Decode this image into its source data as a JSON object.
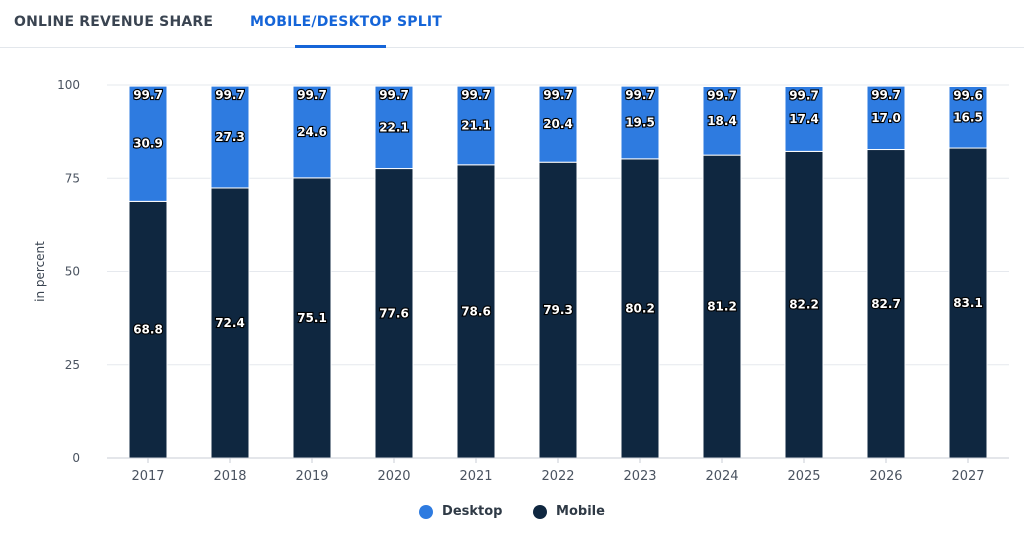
{
  "tabs": [
    {
      "label": "ONLINE REVENUE SHARE"
    },
    {
      "label": "MOBILE/DESKTOP SPLIT"
    }
  ],
  "colors": {
    "desktop": "#2e7be0",
    "mobile": "#0f2740",
    "active_tab": "#1565d8",
    "grid": "#e6e9ee"
  },
  "chart_data": {
    "type": "bar",
    "stacked": true,
    "ylabel": "in percent",
    "ylim": [
      0,
      100
    ],
    "yticks": [
      "0",
      "25",
      "50",
      "75",
      "100"
    ],
    "categories": [
      "2017",
      "2018",
      "2019",
      "2020",
      "2021",
      "2022",
      "2023",
      "2024",
      "2025",
      "2026",
      "2027"
    ],
    "series": [
      {
        "name": "Mobile",
        "values": [
          68.8,
          72.4,
          75.1,
          77.6,
          78.6,
          79.3,
          80.2,
          81.2,
          82.2,
          82.7,
          83.1
        ]
      },
      {
        "name": "Desktop",
        "values": [
          30.9,
          27.3,
          24.6,
          22.1,
          21.1,
          20.4,
          19.5,
          18.4,
          17.4,
          17.0,
          16.5
        ]
      }
    ],
    "data_labels": {
      "mobile": [
        "68.8",
        "72.4",
        "75.1",
        "77.6",
        "78.6",
        "79.3",
        "80.2",
        "81.2",
        "82.2",
        "82.7",
        "83.1"
      ],
      "desktop": [
        "30.9",
        "27.3",
        "24.6",
        "22.1",
        "21.1",
        "20.4",
        "19.5",
        "18.4",
        "17.4",
        "17.0",
        "16.5"
      ],
      "totals": [
        "99.7",
        "99.7",
        "99.7",
        "99.7",
        "99.7",
        "99.7",
        "99.7",
        "99.7",
        "99.7",
        "99.7",
        "99.6"
      ]
    },
    "grid": true,
    "legend": {
      "position": "bottom",
      "items": [
        "Desktop",
        "Mobile"
      ]
    }
  }
}
